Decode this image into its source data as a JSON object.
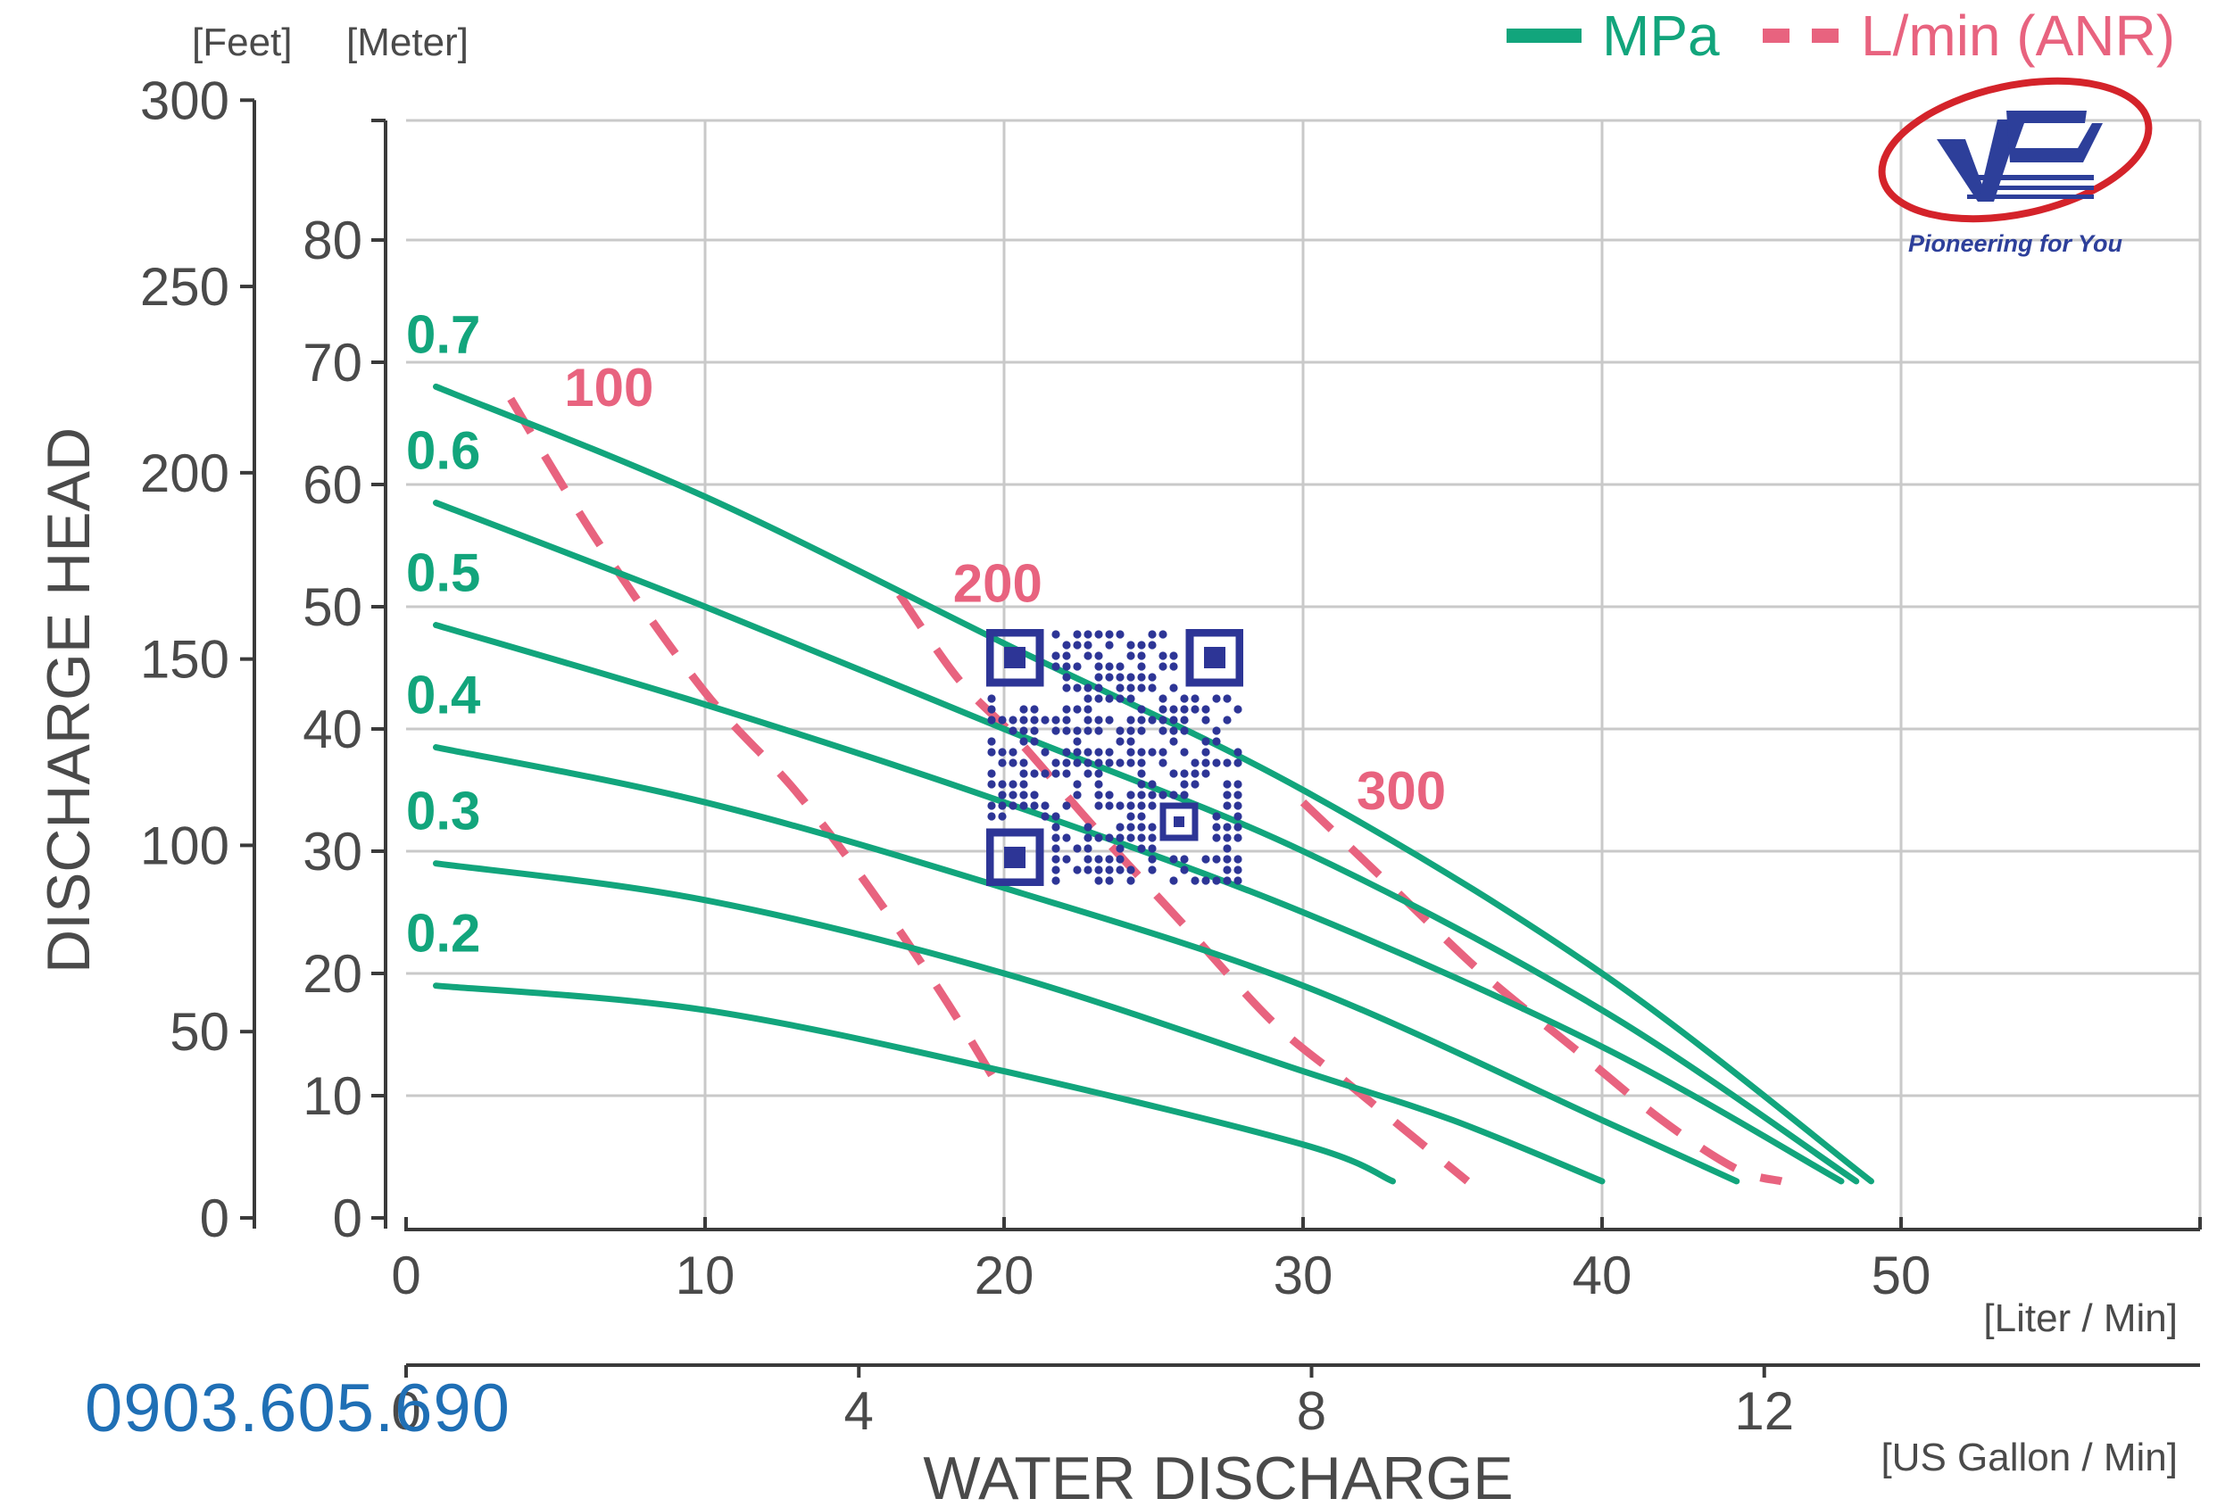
{
  "chart_data": {
    "type": "line",
    "legend": [
      {
        "name": "MPa",
        "style": "solid",
        "color": "#12a57c"
      },
      {
        "name": "L/min (ANR)",
        "style": "dashed",
        "color": "#e8637f"
      }
    ],
    "legend_position": "top-right",
    "xlabel": "WATER DISCHARGE",
    "ylabel": "DISCHARGE HEAD",
    "x_unit_primary": "[Liter / Min]",
    "x_unit_secondary": "[US Gallon / Min]",
    "y_unit_feet": "[Feet]",
    "y_unit_meter": "[Meter]",
    "xlim": [
      0,
      60
    ],
    "ylim_meter": [
      0,
      90
    ],
    "x_ticks": [
      "0",
      "10",
      "20",
      "30",
      "40",
      "50"
    ],
    "x_tick_values": [
      0,
      10,
      20,
      30,
      40,
      50
    ],
    "gallon_ticks": [
      "0",
      "4",
      "8",
      "12"
    ],
    "gallon_tick_values": [
      0,
      4,
      8,
      12
    ],
    "meter_ticks": [
      "0",
      "10",
      "20",
      "30",
      "40",
      "50",
      "60",
      "70",
      "80"
    ],
    "meter_tick_values": [
      0,
      10,
      20,
      30,
      40,
      50,
      60,
      70,
      80
    ],
    "feet_ticks": [
      "0",
      "50",
      "100",
      "150",
      "200",
      "250",
      "300"
    ],
    "feet_tick_values": [
      0,
      50,
      100,
      150,
      200,
      250,
      300
    ],
    "grid": true,
    "pressure_series": [
      {
        "name": "0.7",
        "x": [
          1,
          10,
          20,
          30,
          40,
          49
        ],
        "y": [
          68,
          59,
          47,
          35,
          20,
          3
        ]
      },
      {
        "name": "0.6",
        "x": [
          1,
          10,
          20,
          30,
          40,
          48.5
        ],
        "y": [
          58.5,
          50,
          40,
          30,
          17,
          3
        ]
      },
      {
        "name": "0.5",
        "x": [
          1,
          10,
          20,
          30,
          40,
          48
        ],
        "y": [
          48.5,
          42,
          34,
          25,
          14,
          3
        ]
      },
      {
        "name": "0.4",
        "x": [
          1,
          10,
          20,
          30,
          40,
          44.5
        ],
        "y": [
          38.5,
          34,
          27,
          19,
          8,
          3
        ]
      },
      {
        "name": "0.3",
        "x": [
          1,
          10,
          20,
          30,
          35,
          40
        ],
        "y": [
          29,
          26,
          20,
          12,
          8,
          3
        ]
      },
      {
        "name": "0.2",
        "x": [
          1,
          10,
          20,
          30,
          33
        ],
        "y": [
          19,
          17,
          12,
          6,
          3
        ]
      }
    ],
    "airflow_series": [
      {
        "name": "100",
        "x": [
          3.5,
          6.5,
          10,
          13,
          15.5,
          18,
          20
        ],
        "y": [
          67,
          55,
          43,
          35,
          27,
          18,
          10
        ]
      },
      {
        "name": "200",
        "x": [
          16.5,
          18.5,
          20.5,
          23,
          26,
          29,
          31.5,
          34,
          35.5
        ],
        "y": [
          51,
          44,
          39,
          32,
          24,
          16,
          11,
          6,
          3
        ]
      },
      {
        "name": "300",
        "x": [
          30,
          33,
          36,
          39,
          42,
          44.5,
          46
        ],
        "y": [
          34,
          27,
          20,
          14,
          8,
          4,
          3
        ]
      }
    ]
  },
  "contact": {
    "phone": "0903.605.690"
  },
  "logo": {
    "tagline": "Pioneering for You"
  }
}
